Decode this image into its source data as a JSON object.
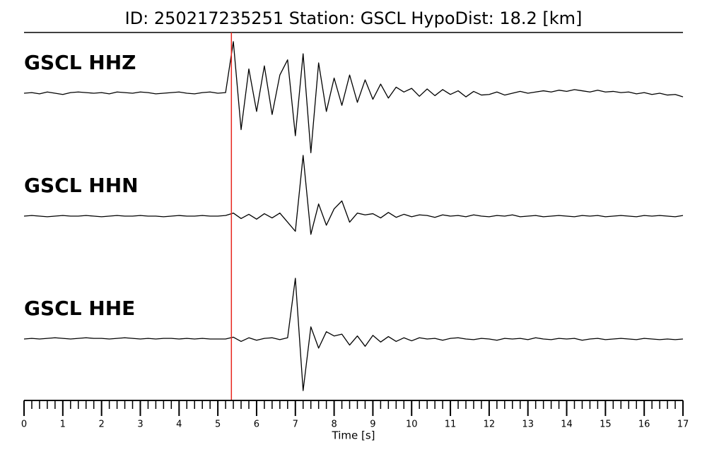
{
  "chart_data": {
    "type": "seismogram",
    "title": "ID: 250217235251   Station: GSCL   HypoDist:    18.2 [km]",
    "xlabel": "Time [s]",
    "xlim": [
      0,
      17
    ],
    "xticks": [
      0,
      1,
      2,
      3,
      4,
      5,
      6,
      7,
      8,
      9,
      10,
      11,
      12,
      13,
      14,
      15,
      16,
      17
    ],
    "xminorticks": [
      0.2,
      0.4,
      0.6,
      0.8,
      1.2,
      1.4,
      1.6,
      1.8,
      2.2,
      2.4,
      2.6,
      2.8,
      3.2,
      3.4,
      3.6,
      3.8,
      4.2,
      4.4,
      4.6,
      4.8,
      5.2,
      5.4,
      5.6,
      5.8,
      6.2,
      6.4,
      6.6,
      6.8,
      7.2,
      7.4,
      7.6,
      7.8,
      8.2,
      8.4,
      8.6,
      8.8,
      9.2,
      9.4,
      9.6,
      9.8,
      10.2,
      10.4,
      10.6,
      10.8,
      11.2,
      11.4,
      11.6,
      11.8,
      12.2,
      12.4,
      12.6,
      12.8,
      13.2,
      13.4,
      13.6,
      13.8,
      14.2,
      14.4,
      14.6,
      14.8,
      15.2,
      15.4,
      15.6,
      15.8,
      16.2,
      16.4,
      16.6,
      16.8
    ],
    "pick": 5.35,
    "pick_color": "#e8261e",
    "label_color": "#4a9a00",
    "x": [
      0,
      0.2,
      0.4,
      0.6,
      0.8,
      1,
      1.2,
      1.4,
      1.6,
      1.8,
      2,
      2.2,
      2.4,
      2.6,
      2.8,
      3,
      3.2,
      3.4,
      3.6,
      3.8,
      4,
      4.2,
      4.4,
      4.6,
      4.8,
      5,
      5.2,
      5.4,
      5.6,
      5.8,
      6,
      6.2,
      6.4,
      6.6,
      6.8,
      7,
      7.2,
      7.4,
      7.6,
      7.8,
      8,
      8.2,
      8.4,
      8.6,
      8.8,
      9,
      9.2,
      9.4,
      9.6,
      9.8,
      10,
      10.2,
      10.4,
      10.6,
      10.8,
      11,
      11.2,
      11.4,
      11.6,
      11.8,
      12,
      12.2,
      12.4,
      12.6,
      12.8,
      13,
      13.2,
      13.4,
      13.6,
      13.8,
      14,
      14.2,
      14.4,
      14.6,
      14.8,
      15,
      15.2,
      15.4,
      15.6,
      15.8,
      16,
      16.2,
      16.4,
      16.6,
      16.8,
      17
    ],
    "series": [
      {
        "name": "GSCL HHZ",
        "color": "#000000",
        "values": [
          0,
          0.01,
          -0.01,
          0.02,
          0,
          -0.02,
          0.01,
          0.02,
          0.01,
          0,
          0.01,
          -0.01,
          0.02,
          0.01,
          0,
          0.02,
          0.01,
          -0.01,
          0,
          0.01,
          0.02,
          0,
          -0.01,
          0.01,
          0.02,
          0,
          0.01,
          0.85,
          -0.6,
          0.4,
          -0.3,
          0.45,
          -0.35,
          0.3,
          0.55,
          -0.7,
          0.65,
          -0.98,
          0.5,
          -0.3,
          0.25,
          -0.2,
          0.3,
          -0.15,
          0.22,
          -0.1,
          0.15,
          -0.08,
          0.1,
          0.02,
          0.08,
          -0.05,
          0.07,
          -0.04,
          0.06,
          -0.02,
          0.04,
          -0.06,
          0.03,
          -0.03,
          -0.02,
          0.02,
          -0.03,
          0,
          0.03,
          0,
          0.02,
          0.04,
          0.02,
          0.05,
          0.03,
          0.06,
          0.04,
          0.02,
          0.05,
          0.02,
          0.03,
          0.01,
          0.02,
          -0.01,
          0.01,
          -0.02,
          0,
          -0.03,
          -0.02,
          -0.06
        ]
      },
      {
        "name": "GSCL HHN",
        "color": "#000000",
        "values": [
          0,
          0.01,
          0,
          -0.01,
          0,
          0.01,
          0,
          0,
          0.01,
          0,
          -0.01,
          0,
          0.01,
          0,
          0,
          0.01,
          0,
          0,
          -0.01,
          0,
          0.01,
          0,
          0,
          0.01,
          0,
          0,
          0.01,
          0.05,
          -0.04,
          0.03,
          -0.05,
          0.04,
          -0.03,
          0.05,
          -0.1,
          -0.25,
          1.0,
          -0.3,
          0.2,
          -0.15,
          0.12,
          0.25,
          -0.1,
          0.05,
          0.02,
          0.04,
          -0.03,
          0.06,
          -0.02,
          0.03,
          -0.01,
          0.02,
          0.01,
          -0.02,
          0.02,
          0,
          0.01,
          -0.01,
          0.02,
          0,
          -0.01,
          0.01,
          0,
          0.02,
          -0.01,
          0,
          0.01,
          -0.01,
          0,
          0.01,
          0,
          -0.01,
          0.01,
          0,
          0.01,
          -0.01,
          0,
          0.01,
          0,
          -0.01,
          0.01,
          0,
          0.01,
          0,
          -0.01,
          0.01
        ]
      },
      {
        "name": "GSCL HHE",
        "color": "#000000",
        "values": [
          0,
          0.01,
          0,
          0.01,
          0.02,
          0.01,
          0,
          0.01,
          0.02,
          0.01,
          0.01,
          0,
          0.01,
          0.02,
          0.01,
          0,
          0.01,
          0,
          0.01,
          0.01,
          0,
          0.01,
          0,
          0.01,
          0,
          0,
          0,
          0.03,
          -0.04,
          0.02,
          -0.02,
          0.01,
          0.02,
          -0.01,
          0.02,
          1.0,
          -0.85,
          0.2,
          -0.15,
          0.12,
          0.05,
          0.08,
          -0.1,
          0.05,
          -0.12,
          0.06,
          -0.05,
          0.04,
          -0.04,
          0.02,
          -0.03,
          0.02,
          0,
          0.01,
          -0.02,
          0.01,
          0.02,
          0,
          -0.01,
          0.01,
          0,
          -0.02,
          0.01,
          0,
          0.01,
          -0.01,
          0.02,
          0,
          -0.01,
          0.01,
          0,
          0.01,
          -0.02,
          0,
          0.01,
          -0.01,
          0,
          0.01,
          0,
          -0.01,
          0.01,
          0,
          -0.01,
          0,
          -0.01,
          0
        ]
      }
    ]
  }
}
